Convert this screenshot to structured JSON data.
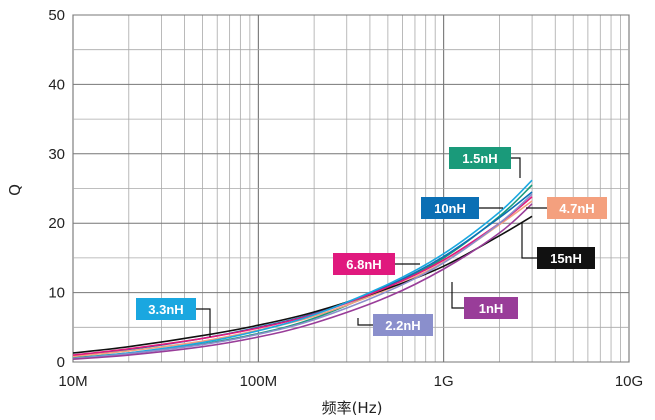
{
  "chart_data": {
    "type": "line",
    "xscale": "log",
    "xlabel": "频率(Hz)",
    "ylabel": "Q",
    "xlim": [
      10000000,
      10000000000
    ],
    "ylim": [
      0,
      50
    ],
    "grid": true,
    "x_ticks": [
      {
        "value": 10000000,
        "label": "10M"
      },
      {
        "value": 100000000,
        "label": "100M"
      },
      {
        "value": 1000000000,
        "label": "1G"
      },
      {
        "value": 10000000000,
        "label": "10G"
      }
    ],
    "y_ticks": [
      0,
      10,
      20,
      30,
      40,
      50
    ],
    "x": [
      10000000,
      20000000,
      50000000,
      100000000,
      200000000,
      500000000,
      1000000000,
      2000000000,
      3000000000
    ],
    "series": [
      {
        "name": "1.5nH",
        "color": "#1a9a7a",
        "values": [
          0.6,
          1.3,
          2.6,
          4.1,
          6.3,
          10.8,
          15.0,
          21.0,
          25.5
        ]
      },
      {
        "name": "10nH",
        "color": "#0b6fb4",
        "values": [
          0.9,
          1.8,
          3.4,
          5.0,
          7.0,
          11.0,
          15.2,
          20.8,
          24.5
        ]
      },
      {
        "name": "4.7nH",
        "color": "#f4a07e",
        "values": [
          0.8,
          1.6,
          3.0,
          4.6,
          6.6,
          10.5,
          14.4,
          19.8,
          23.2
        ]
      },
      {
        "name": "15nH",
        "color": "#111111",
        "values": [
          1.3,
          2.2,
          3.8,
          5.3,
          7.2,
          10.6,
          13.8,
          18.2,
          21.0
        ]
      },
      {
        "name": "6.8nH",
        "color": "#e0197e",
        "values": [
          1.0,
          1.9,
          3.4,
          4.9,
          6.9,
          10.8,
          14.7,
          20.0,
          23.8
        ]
      },
      {
        "name": "3.3nH",
        "color": "#1aa7e0",
        "values": [
          0.5,
          1.3,
          2.8,
          4.5,
          6.8,
          11.2,
          15.6,
          21.6,
          26.2
        ]
      },
      {
        "name": "2.2nH",
        "color": "#8a8fcc",
        "values": [
          0.5,
          1.2,
          2.5,
          4.0,
          6.1,
          10.2,
          14.3,
          20.0,
          24.2
        ]
      },
      {
        "name": "1nH",
        "color": "#993d99",
        "values": [
          0.4,
          1.0,
          2.2,
          3.6,
          5.6,
          9.4,
          13.4,
          18.6,
          22.8
        ]
      }
    ],
    "labels": [
      {
        "text": "1.5nH",
        "series": "1.5nH",
        "color": "#1a9a7a"
      },
      {
        "text": "10nH",
        "series": "10nH",
        "color": "#0b6fb4"
      },
      {
        "text": "4.7nH",
        "series": "4.7nH",
        "color": "#f4a07e"
      },
      {
        "text": "15nH",
        "series": "15nH",
        "color": "#111111"
      },
      {
        "text": "6.8nH",
        "series": "6.8nH",
        "color": "#e0197e"
      },
      {
        "text": "3.3nH",
        "series": "3.3nH",
        "color": "#1aa7e0"
      },
      {
        "text": "2.2nH",
        "series": "2.2nH",
        "color": "#8a8fcc"
      },
      {
        "text": "1nH",
        "series": "1nH",
        "color": "#993d99"
      }
    ]
  }
}
